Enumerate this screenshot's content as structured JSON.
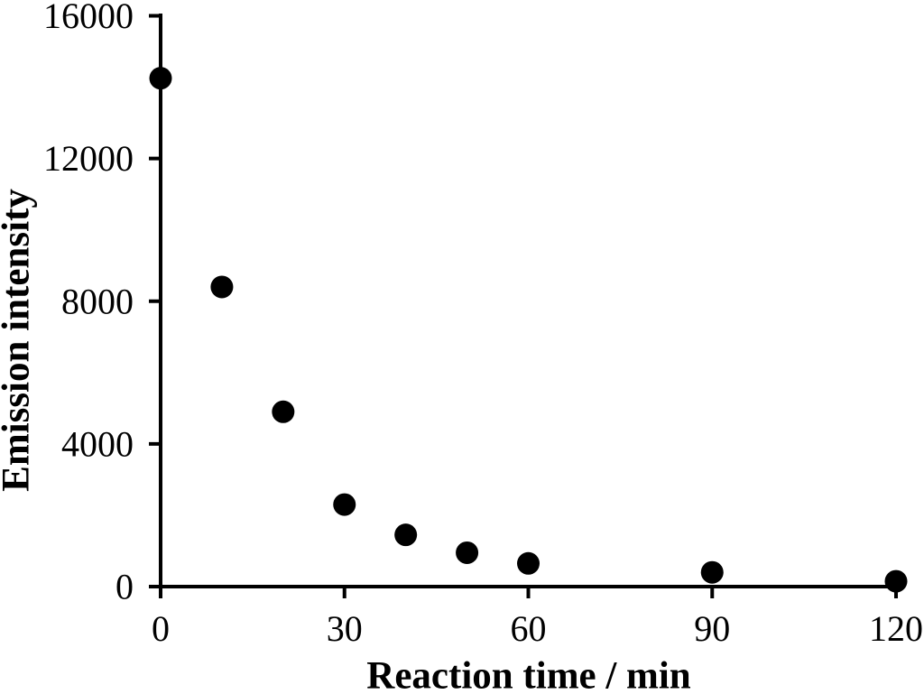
{
  "chart_data": {
    "type": "scatter",
    "title": "",
    "xlabel": "Reaction time / min",
    "ylabel": "Emission intensity",
    "x": [
      0,
      10,
      20,
      30,
      40,
      50,
      60,
      90,
      120
    ],
    "y": [
      14250,
      8400,
      4900,
      2300,
      1450,
      950,
      650,
      400,
      150
    ],
    "xlim": [
      0,
      120
    ],
    "ylim": [
      0,
      16000
    ],
    "x_ticks": [
      0,
      30,
      60,
      90,
      120
    ],
    "y_ticks": [
      0,
      4000,
      8000,
      12000,
      16000
    ],
    "grid": false,
    "legend": false,
    "marker": {
      "shape": "circle",
      "color": "#000000",
      "radius_px": 12.5
    },
    "axis_color": "#000000",
    "background_color": "#ffffff"
  }
}
